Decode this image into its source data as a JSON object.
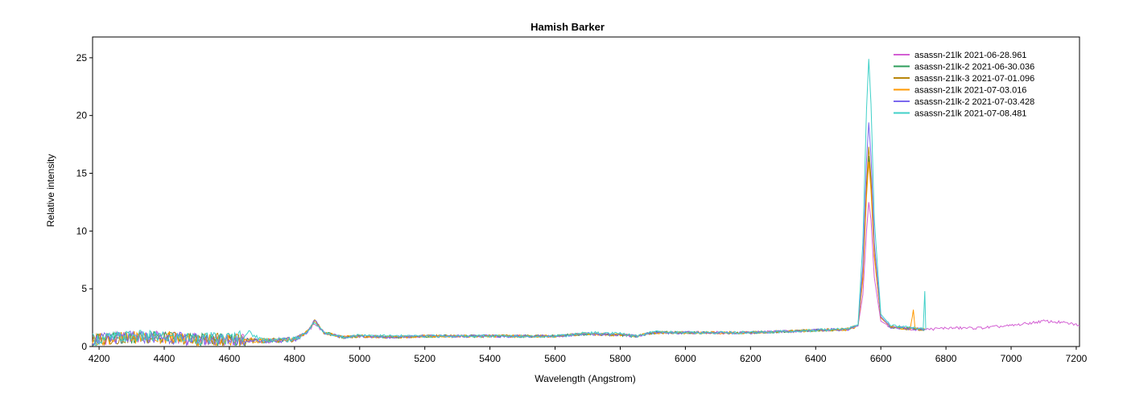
{
  "chart_data": {
    "type": "line",
    "title": "Hamish Barker",
    "xlabel": "Wavelength (Angstrom)",
    "ylabel": "Relative intensity",
    "xlim": [
      4180,
      7210
    ],
    "ylim": [
      0,
      26.8
    ],
    "xticks": [
      4200,
      4400,
      4600,
      4800,
      5000,
      5200,
      5400,
      5600,
      5800,
      6000,
      6200,
      6400,
      6600,
      6800,
      7000,
      7200
    ],
    "yticks": [
      0,
      5,
      10,
      15,
      20,
      25
    ],
    "grid": false,
    "legend_position": "top-right",
    "series": [
      {
        "name": "asassn-21lk  2021-06-28.961",
        "color": "#d35fd3",
        "x": [
          4180,
          4300,
          4400,
          4500,
          4600,
          4700,
          4800,
          4840,
          4862,
          4890,
          4950,
          5000,
          5100,
          5200,
          5300,
          5400,
          5500,
          5600,
          5650,
          5700,
          5800,
          5850,
          5900,
          6000,
          6100,
          6200,
          6300,
          6400,
          6500,
          6530,
          6545,
          6556,
          6563,
          6570,
          6580,
          6600,
          6630,
          6700,
          6750,
          6800,
          6900,
          7000,
          7050,
          7100,
          7150,
          7200,
          7210
        ],
        "y": [
          0.6,
          0.8,
          0.8,
          0.6,
          0.6,
          0.5,
          0.6,
          1.2,
          2.0,
          1.2,
          0.8,
          0.9,
          0.8,
          0.9,
          0.9,
          0.9,
          0.9,
          0.9,
          1.0,
          1.1,
          1.0,
          0.9,
          1.2,
          1.2,
          1.2,
          1.2,
          1.3,
          1.4,
          1.5,
          1.8,
          4.5,
          10.0,
          12.5,
          11.0,
          6.0,
          2.2,
          1.7,
          1.5,
          1.5,
          1.6,
          1.6,
          1.8,
          2.0,
          2.2,
          2.1,
          1.9,
          1.8
        ]
      },
      {
        "name": "asassn-21lk-2  2021-06-30.036",
        "color": "#2e9e5b",
        "x": [
          4180,
          4300,
          4400,
          4500,
          4600,
          4700,
          4800,
          4840,
          4862,
          4890,
          4950,
          5000,
          5100,
          5200,
          5300,
          5400,
          5500,
          5600,
          5650,
          5700,
          5800,
          5850,
          5900,
          6000,
          6100,
          6200,
          6300,
          6400,
          6500,
          6530,
          6545,
          6556,
          6563,
          6570,
          6580,
          6600,
          6630,
          6700,
          6735
        ],
        "y": [
          0.6,
          0.8,
          0.8,
          0.6,
          0.6,
          0.5,
          0.6,
          1.3,
          2.2,
          1.2,
          0.8,
          0.9,
          0.8,
          0.9,
          0.9,
          0.9,
          0.9,
          0.9,
          1.0,
          1.1,
          1.0,
          0.9,
          1.2,
          1.2,
          1.2,
          1.2,
          1.3,
          1.4,
          1.5,
          1.8,
          6.0,
          13.5,
          16.5,
          14.0,
          8.0,
          2.5,
          1.7,
          1.5,
          1.5
        ]
      },
      {
        "name": "asassn-21lk-3  2021-07-01.096",
        "color": "#b8860b",
        "x": [
          4180,
          4300,
          4400,
          4500,
          4600,
          4700,
          4800,
          4840,
          4862,
          4890,
          4950,
          5000,
          5100,
          5200,
          5300,
          5400,
          5500,
          5600,
          5650,
          5700,
          5800,
          5850,
          5900,
          6000,
          6100,
          6200,
          6300,
          6400,
          6500,
          6530,
          6545,
          6556,
          6563,
          6570,
          6580,
          6600,
          6630,
          6700,
          6735
        ],
        "y": [
          0.6,
          0.8,
          0.8,
          0.6,
          0.6,
          0.5,
          0.6,
          1.3,
          2.3,
          1.2,
          0.8,
          0.9,
          0.8,
          0.9,
          0.9,
          0.9,
          0.9,
          0.9,
          1.0,
          1.1,
          1.0,
          0.9,
          1.2,
          1.2,
          1.2,
          1.2,
          1.3,
          1.4,
          1.5,
          1.8,
          6.2,
          14.0,
          17.3,
          14.5,
          8.2,
          2.5,
          1.7,
          1.5,
          1.5
        ]
      },
      {
        "name": "asassn-21lk  2021-07-03.016",
        "color": "#ff9900",
        "x": [
          4180,
          4300,
          4400,
          4500,
          4600,
          4700,
          4800,
          4840,
          4862,
          4890,
          4950,
          5000,
          5100,
          5200,
          5300,
          5400,
          5500,
          5600,
          5650,
          5700,
          5800,
          5850,
          5900,
          6000,
          6100,
          6200,
          6300,
          6400,
          6500,
          6530,
          6545,
          6556,
          6563,
          6570,
          6580,
          6600,
          6630,
          6690,
          6700,
          6705,
          6735
        ],
        "y": [
          0.6,
          0.8,
          0.8,
          0.6,
          0.6,
          0.5,
          0.6,
          1.3,
          2.2,
          1.2,
          0.8,
          0.9,
          0.8,
          0.9,
          0.9,
          0.9,
          0.9,
          0.9,
          1.0,
          1.1,
          1.0,
          0.9,
          1.2,
          1.2,
          1.2,
          1.2,
          1.3,
          1.4,
          1.5,
          1.8,
          5.8,
          13.0,
          16.0,
          13.5,
          7.8,
          2.5,
          1.7,
          1.5,
          3.1,
          1.5,
          1.5
        ]
      },
      {
        "name": "asassn-21lk-2  2021-07-03.428",
        "color": "#7b68ee",
        "x": [
          4180,
          4300,
          4400,
          4500,
          4600,
          4700,
          4800,
          4840,
          4862,
          4890,
          4950,
          5000,
          5100,
          5200,
          5300,
          5400,
          5500,
          5600,
          5650,
          5700,
          5800,
          5850,
          5900,
          6000,
          6100,
          6200,
          6300,
          6400,
          6500,
          6530,
          6545,
          6556,
          6563,
          6570,
          6580,
          6600,
          6630,
          6700,
          6735
        ],
        "y": [
          0.6,
          0.8,
          0.8,
          0.6,
          0.6,
          0.5,
          0.6,
          1.3,
          2.3,
          1.2,
          0.8,
          0.9,
          0.8,
          0.9,
          0.9,
          0.9,
          0.9,
          0.9,
          1.0,
          1.1,
          1.0,
          0.9,
          1.2,
          1.2,
          1.2,
          1.2,
          1.3,
          1.4,
          1.5,
          1.8,
          7.0,
          16.0,
          19.4,
          16.5,
          9.0,
          2.6,
          1.7,
          1.5,
          1.5
        ]
      },
      {
        "name": "asassn-21lk  2021-07-08.481",
        "color": "#40d0c8",
        "x": [
          4180,
          4300,
          4400,
          4500,
          4600,
          4660,
          4700,
          4800,
          4840,
          4862,
          4890,
          4950,
          5000,
          5100,
          5200,
          5300,
          5400,
          5500,
          5600,
          5650,
          5700,
          5800,
          5850,
          5900,
          6000,
          6100,
          6200,
          6300,
          6400,
          6500,
          6530,
          6545,
          6556,
          6563,
          6570,
          6580,
          6600,
          6630,
          6700,
          6730,
          6735,
          6738
        ],
        "y": [
          0.6,
          0.9,
          0.8,
          0.7,
          0.7,
          1.2,
          0.6,
          0.6,
          1.3,
          2.1,
          1.2,
          0.8,
          1.0,
          0.9,
          0.9,
          0.9,
          0.9,
          0.9,
          0.9,
          1.0,
          1.2,
          1.1,
          0.9,
          1.3,
          1.2,
          1.2,
          1.2,
          1.3,
          1.4,
          1.6,
          1.9,
          9.0,
          20.5,
          24.9,
          21.0,
          11.0,
          2.8,
          1.8,
          1.6,
          1.6,
          4.7,
          1.5
        ]
      }
    ]
  }
}
